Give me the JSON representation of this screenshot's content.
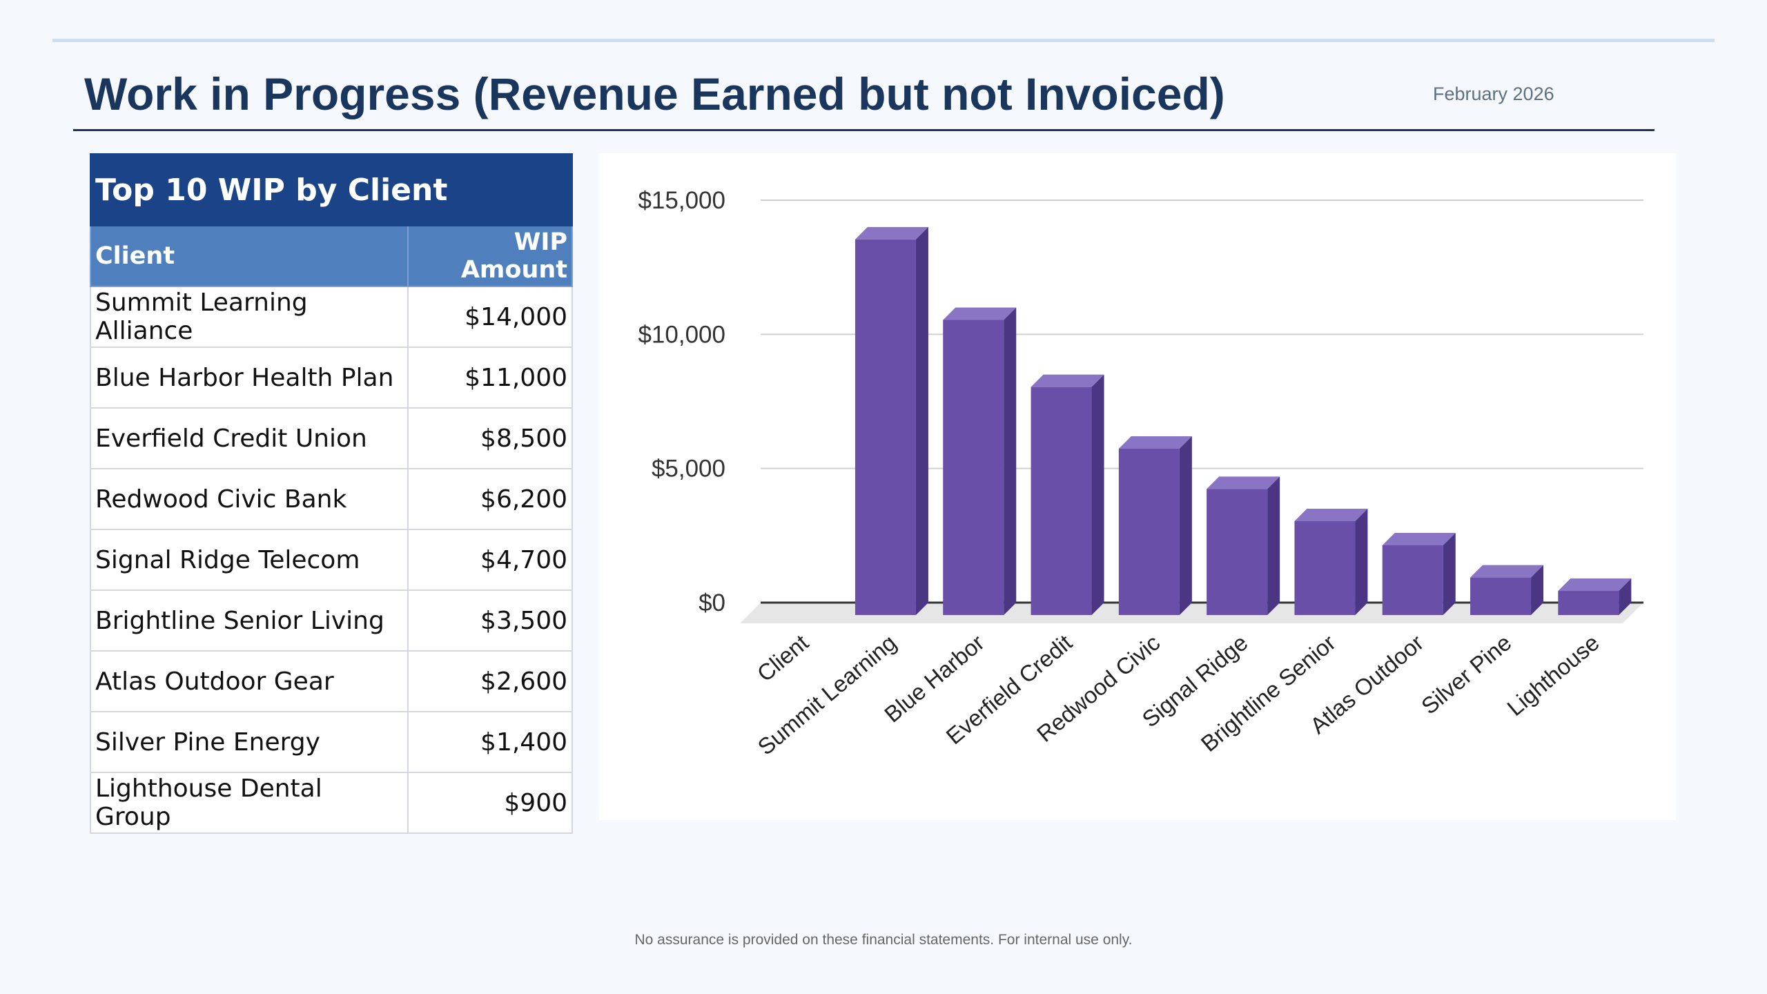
{
  "header": {
    "title": "Work in Progress (Revenue Earned but not Invoiced)",
    "date": "February  2026"
  },
  "table": {
    "title": "Top 10 WIP by Client",
    "col_client": "Client",
    "col_amount": "WIP Amount",
    "rows": [
      {
        "client": "Summit Learning Alliance",
        "amount": "$14,000"
      },
      {
        "client": "Blue Harbor Health Plan",
        "amount": "$11,000"
      },
      {
        "client": "Everfield Credit Union",
        "amount": "$8,500"
      },
      {
        "client": "Redwood Civic Bank",
        "amount": "$6,200"
      },
      {
        "client": "Signal Ridge Telecom",
        "amount": "$4,700"
      },
      {
        "client": "Brightline Senior Living",
        "amount": "$3,500"
      },
      {
        "client": "Atlas Outdoor Gear",
        "amount": "$2,600"
      },
      {
        "client": "Silver Pine Energy",
        "amount": "$1,400"
      },
      {
        "client": "Lighthouse Dental Group",
        "amount": "$900"
      }
    ]
  },
  "chart_data": {
    "type": "bar",
    "title": "",
    "xlabel": "",
    "ylabel": "",
    "categories": [
      "Client",
      "Summit Learning",
      "Blue Harbor",
      "Everfield Credit",
      "Redwood Civic",
      "Signal Ridge",
      "Brightline Senior",
      "Atlas Outdoor",
      "Silver Pine",
      "Lighthouse"
    ],
    "values": [
      null,
      14000,
      11000,
      8500,
      6200,
      4700,
      3500,
      2600,
      1400,
      900
    ],
    "ylim": [
      0,
      15000
    ],
    "yticks": [
      0,
      5000,
      10000,
      15000
    ],
    "ytick_labels": [
      "$0",
      "$5,000",
      "$10,000",
      "$15,000"
    ],
    "grid": true,
    "style": "3d",
    "colors": {
      "bar_front": "#694fa8",
      "bar_top": "#8a75c4",
      "bar_side": "#4a3682",
      "floor": "#e6e6e6",
      "grid": "#d0d0d0",
      "axis": "#333333"
    }
  },
  "footer": {
    "note": "No assurance is provided on these financial statements. For internal use only."
  }
}
